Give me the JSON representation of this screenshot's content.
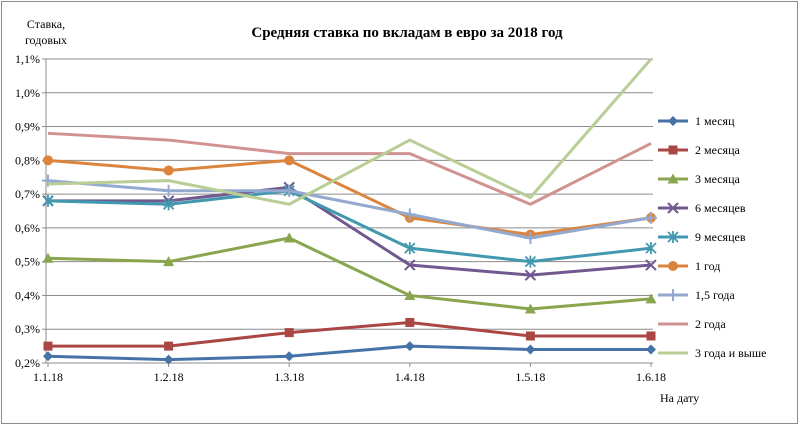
{
  "chart_data": {
    "type": "line",
    "title": "Средняя ставка по вкладам в евро за 2018 год",
    "ylabel": [
      "Ставка,",
      "годовых"
    ],
    "xlabel": "На дату",
    "categories": [
      "1.1.18",
      "1.2.18",
      "1.3.18",
      "1.4.18",
      "1.5.18",
      "1.6.18"
    ],
    "ylim": [
      0.2,
      1.1
    ],
    "yticks": [
      "0,2%",
      "0,3%",
      "0,4%",
      "0,5%",
      "0,6%",
      "0,7%",
      "0,8%",
      "0,9%",
      "1,0%",
      "1,1%"
    ],
    "grid": "horizontal",
    "legend_position": "right",
    "series": [
      {
        "name": "1 месяц",
        "color": "#4572a7",
        "marker": "diamond",
        "values": [
          0.22,
          0.21,
          0.22,
          0.25,
          0.24,
          0.24
        ]
      },
      {
        "name": "2 месяца",
        "color": "#aa4643",
        "marker": "square",
        "values": [
          0.25,
          0.25,
          0.29,
          0.32,
          0.28,
          0.28
        ]
      },
      {
        "name": "3 месяца",
        "color": "#89a54e",
        "marker": "triangle",
        "values": [
          0.51,
          0.5,
          0.57,
          0.4,
          0.36,
          0.39
        ]
      },
      {
        "name": "6 месяцев",
        "color": "#71588f",
        "marker": "x",
        "values": [
          0.68,
          0.68,
          0.72,
          0.49,
          0.46,
          0.49
        ]
      },
      {
        "name": "9 месяцев",
        "color": "#4198af",
        "marker": "star",
        "values": [
          0.68,
          0.67,
          0.71,
          0.54,
          0.5,
          0.54
        ]
      },
      {
        "name": "1 год",
        "color": "#db843d",
        "marker": "circle",
        "values": [
          0.8,
          0.77,
          0.8,
          0.63,
          0.58,
          0.63
        ]
      },
      {
        "name": "1,5 года",
        "color": "#93a9cf",
        "marker": "plus",
        "values": [
          0.74,
          0.71,
          0.71,
          0.64,
          0.57,
          0.63
        ]
      },
      {
        "name": "2 года",
        "color": "#d19392",
        "marker": "none",
        "values": [
          0.88,
          0.86,
          0.82,
          0.82,
          0.67,
          0.85
        ]
      },
      {
        "name": "3 года и выше",
        "color": "#b9cd96",
        "marker": "none",
        "values": [
          0.73,
          0.74,
          0.67,
          0.86,
          0.69,
          1.1
        ]
      }
    ]
  }
}
